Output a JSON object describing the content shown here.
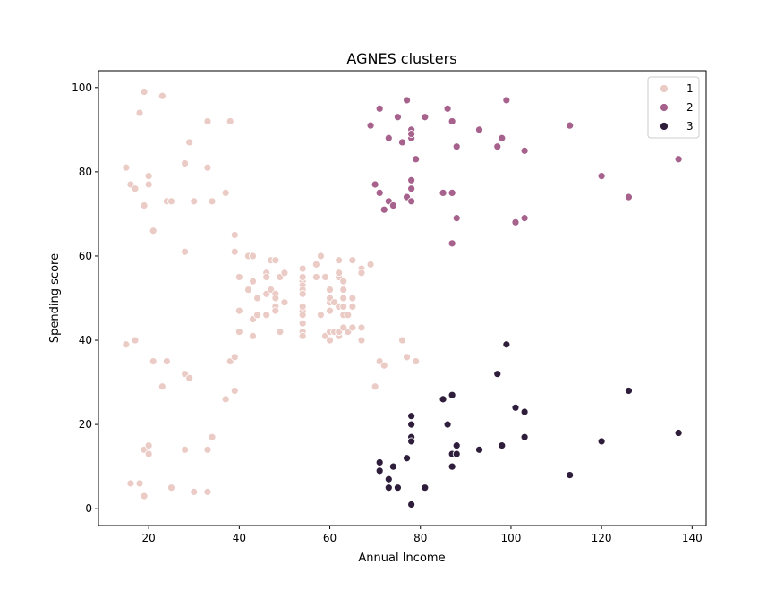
{
  "chart_data": {
    "type": "scatter",
    "title": "AGNES clusters",
    "xlabel": "Annual Income",
    "ylabel": "Spending score",
    "xlim": [
      8.9,
      143.1
    ],
    "ylim": [
      -4.0,
      104.0
    ],
    "xticks": [
      20,
      40,
      60,
      80,
      100,
      120,
      140
    ],
    "yticks": [
      0,
      20,
      40,
      60,
      80,
      100
    ],
    "grid": false,
    "legend_position": "top-right",
    "series": [
      {
        "name": "1",
        "color": "#ebcbc5",
        "points": [
          [
            15,
            39
          ],
          [
            15,
            81
          ],
          [
            16,
            6
          ],
          [
            16,
            77
          ],
          [
            17,
            40
          ],
          [
            17,
            76
          ],
          [
            18,
            6
          ],
          [
            18,
            94
          ],
          [
            19,
            3
          ],
          [
            19,
            72
          ],
          [
            19,
            14
          ],
          [
            19,
            99
          ],
          [
            20,
            15
          ],
          [
            20,
            77
          ],
          [
            20,
            13
          ],
          [
            20,
            79
          ],
          [
            21,
            35
          ],
          [
            21,
            66
          ],
          [
            23,
            29
          ],
          [
            23,
            98
          ],
          [
            24,
            35
          ],
          [
            24,
            73
          ],
          [
            25,
            5
          ],
          [
            25,
            73
          ],
          [
            28,
            14
          ],
          [
            28,
            82
          ],
          [
            28,
            32
          ],
          [
            28,
            61
          ],
          [
            29,
            31
          ],
          [
            29,
            87
          ],
          [
            30,
            4
          ],
          [
            30,
            73
          ],
          [
            33,
            4
          ],
          [
            33,
            92
          ],
          [
            33,
            14
          ],
          [
            33,
            81
          ],
          [
            34,
            17
          ],
          [
            34,
            73
          ],
          [
            37,
            26
          ],
          [
            37,
            75
          ],
          [
            38,
            35
          ],
          [
            38,
            92
          ],
          [
            39,
            36
          ],
          [
            39,
            61
          ],
          [
            39,
            28
          ],
          [
            39,
            65
          ],
          [
            40,
            55
          ],
          [
            40,
            47
          ],
          [
            40,
            42
          ],
          [
            42,
            52
          ],
          [
            42,
            60
          ],
          [
            43,
            54
          ],
          [
            43,
            60
          ],
          [
            43,
            45
          ],
          [
            43,
            41
          ],
          [
            44,
            50
          ],
          [
            44,
            46
          ],
          [
            46,
            51
          ],
          [
            46,
            46
          ],
          [
            46,
            56
          ],
          [
            46,
            55
          ],
          [
            47,
            52
          ],
          [
            47,
            59
          ],
          [
            48,
            51
          ],
          [
            48,
            59
          ],
          [
            48,
            50
          ],
          [
            48,
            48
          ],
          [
            48,
            47
          ],
          [
            48,
            59
          ],
          [
            49,
            55
          ],
          [
            49,
            42
          ],
          [
            50,
            49
          ],
          [
            50,
            56
          ],
          [
            54,
            47
          ],
          [
            54,
            54
          ],
          [
            54,
            53
          ],
          [
            54,
            48
          ],
          [
            54,
            52
          ],
          [
            54,
            42
          ],
          [
            54,
            51
          ],
          [
            54,
            55
          ],
          [
            54,
            41
          ],
          [
            54,
            44
          ],
          [
            54,
            57
          ],
          [
            54,
            46
          ],
          [
            57,
            58
          ],
          [
            57,
            55
          ],
          [
            58,
            60
          ],
          [
            58,
            46
          ],
          [
            59,
            55
          ],
          [
            59,
            41
          ],
          [
            60,
            49
          ],
          [
            60,
            40
          ],
          [
            60,
            42
          ],
          [
            60,
            52
          ],
          [
            60,
            47
          ],
          [
            60,
            50
          ],
          [
            61,
            42
          ],
          [
            61,
            49
          ],
          [
            62,
            41
          ],
          [
            62,
            48
          ],
          [
            62,
            59
          ],
          [
            62,
            55
          ],
          [
            62,
            56
          ],
          [
            62,
            42
          ],
          [
            63,
            50
          ],
          [
            63,
            46
          ],
          [
            63,
            43
          ],
          [
            63,
            48
          ],
          [
            63,
            52
          ],
          [
            63,
            54
          ],
          [
            64,
            42
          ],
          [
            64,
            46
          ],
          [
            65,
            48
          ],
          [
            65,
            50
          ],
          [
            65,
            43
          ],
          [
            65,
            59
          ],
          [
            67,
            43
          ],
          [
            67,
            57
          ],
          [
            67,
            56
          ],
          [
            67,
            40
          ],
          [
            69,
            58
          ],
          [
            70,
            29
          ],
          [
            71,
            35
          ],
          [
            72,
            34
          ],
          [
            76,
            40
          ],
          [
            77,
            36
          ],
          [
            79,
            35
          ]
        ]
      },
      {
        "name": "2",
        "color": "#a6628c",
        "points": [
          [
            69,
            91
          ],
          [
            70,
            77
          ],
          [
            71,
            95
          ],
          [
            71,
            75
          ],
          [
            72,
            71
          ],
          [
            73,
            88
          ],
          [
            73,
            73
          ],
          [
            74,
            72
          ],
          [
            75,
            93
          ],
          [
            76,
            87
          ],
          [
            77,
            97
          ],
          [
            77,
            74
          ],
          [
            78,
            90
          ],
          [
            78,
            88
          ],
          [
            78,
            89
          ],
          [
            78,
            78
          ],
          [
            78,
            73
          ],
          [
            78,
            76
          ],
          [
            79,
            83
          ],
          [
            81,
            93
          ],
          [
            85,
            75
          ],
          [
            86,
            95
          ],
          [
            87,
            63
          ],
          [
            87,
            75
          ],
          [
            87,
            92
          ],
          [
            88,
            86
          ],
          [
            88,
            69
          ],
          [
            93,
            90
          ],
          [
            97,
            86
          ],
          [
            98,
            88
          ],
          [
            99,
            97
          ],
          [
            101,
            68
          ],
          [
            103,
            85
          ],
          [
            103,
            69
          ],
          [
            113,
            91
          ],
          [
            120,
            79
          ],
          [
            126,
            74
          ],
          [
            137,
            83
          ]
        ]
      },
      {
        "name": "3",
        "color": "#2e1e3b",
        "points": [
          [
            71,
            11
          ],
          [
            71,
            9
          ],
          [
            73,
            5
          ],
          [
            73,
            7
          ],
          [
            74,
            10
          ],
          [
            75,
            5
          ],
          [
            77,
            12
          ],
          [
            78,
            22
          ],
          [
            78,
            17
          ],
          [
            78,
            20
          ],
          [
            78,
            16
          ],
          [
            78,
            1
          ],
          [
            81,
            5
          ],
          [
            85,
            26
          ],
          [
            86,
            20
          ],
          [
            87,
            27
          ],
          [
            87,
            13
          ],
          [
            87,
            10
          ],
          [
            88,
            13
          ],
          [
            88,
            15
          ],
          [
            93,
            14
          ],
          [
            97,
            32
          ],
          [
            98,
            15
          ],
          [
            99,
            39
          ],
          [
            101,
            24
          ],
          [
            103,
            17
          ],
          [
            103,
            23
          ],
          [
            113,
            8
          ],
          [
            120,
            16
          ],
          [
            126,
            28
          ],
          [
            137,
            18
          ]
        ]
      }
    ]
  }
}
